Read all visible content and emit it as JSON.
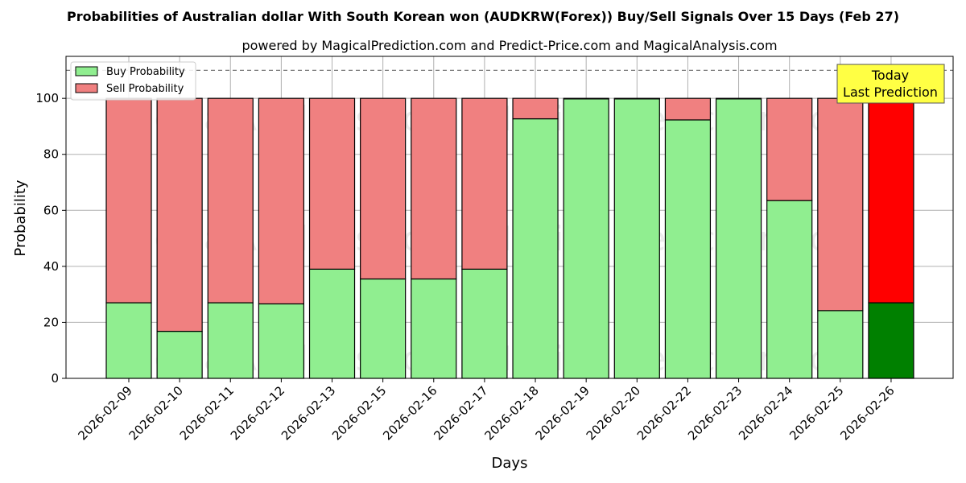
{
  "chart_data": {
    "type": "bar",
    "stacked": true,
    "title": "Probabilities of Australian dollar With South Korean won (AUDKRW(Forex)) Buy/Sell Signals Over 15 Days (Feb 27)",
    "subtitle": "powered by MagicalPrediction.com and Predict-Price.com and MagicalAnalysis.com",
    "xlabel": "Days",
    "ylabel": "Probability",
    "ylim": [
      0,
      115
    ],
    "yticks": [
      0,
      20,
      40,
      60,
      80,
      100
    ],
    "reference_line": 110,
    "grid": true,
    "legend_position": "top-left",
    "categories": [
      "2026-02-09",
      "2026-02-10",
      "2026-02-11",
      "2026-02-12",
      "2026-02-13",
      "2026-02-15",
      "2026-02-16",
      "2026-02-17",
      "2026-02-18",
      "2026-02-19",
      "2026-02-20",
      "2026-02-22",
      "2026-02-23",
      "2026-02-24",
      "2026-02-25",
      "2026-02-26"
    ],
    "series": [
      {
        "name": "Buy Probability",
        "color": "#90ee90",
        "highlight_color": "#008000",
        "values": [
          27,
          16.8,
          27,
          26.6,
          39,
          35.5,
          35.5,
          39,
          92.7,
          99.8,
          99.8,
          92.3,
          99.8,
          63.5,
          24.2,
          27
        ]
      },
      {
        "name": "Sell Probability",
        "color": "#f08080",
        "highlight_color": "#ff0000",
        "values": [
          73,
          83.2,
          73,
          73.4,
          61,
          64.5,
          64.5,
          61,
          7.3,
          0.2,
          0.2,
          7.7,
          0.2,
          36.5,
          75.8,
          73
        ]
      }
    ],
    "highlight_index": 15,
    "annotation": {
      "lines": [
        "Today",
        "Last Prediction"
      ],
      "color": "#ffff44"
    },
    "watermarks": [
      "MagicalAnalysis.com",
      "MagicalPrediction.com"
    ]
  }
}
